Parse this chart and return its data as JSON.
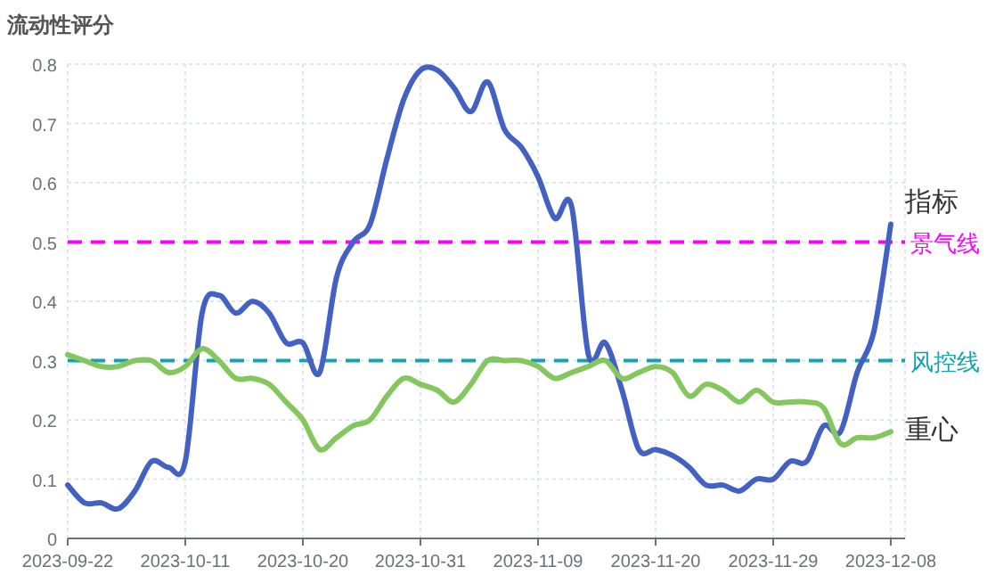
{
  "chart_data": {
    "type": "line",
    "ylabel": "流动性评分",
    "categories": [
      "2023-09-22",
      null,
      null,
      null,
      null,
      null,
      null,
      "2023-10-11",
      null,
      null,
      null,
      null,
      null,
      null,
      "2023-10-20",
      null,
      null,
      null,
      null,
      null,
      null,
      "2023-10-31",
      null,
      null,
      null,
      null,
      null,
      null,
      "2023-11-09",
      null,
      null,
      null,
      null,
      null,
      null,
      "2023-11-20",
      null,
      null,
      null,
      null,
      null,
      null,
      "2023-11-29",
      null,
      null,
      null,
      null,
      null,
      null,
      "2023-12-08"
    ],
    "series": [
      {
        "name": "指标",
        "color": "#4361c2",
        "values": [
          0.09,
          0.06,
          0.06,
          0.05,
          0.08,
          0.13,
          0.12,
          0.13,
          0.38,
          0.41,
          0.38,
          0.4,
          0.38,
          0.33,
          0.33,
          0.28,
          0.44,
          0.5,
          0.53,
          0.64,
          0.74,
          0.79,
          0.79,
          0.76,
          0.72,
          0.77,
          0.69,
          0.66,
          0.61,
          0.54,
          0.56,
          0.31,
          0.33,
          0.25,
          0.15,
          0.15,
          0.14,
          0.12,
          0.09,
          0.09,
          0.08,
          0.1,
          0.1,
          0.13,
          0.13,
          0.19,
          0.18,
          0.28,
          0.35,
          0.53
        ]
      },
      {
        "name": "重心",
        "color": "#85c75f",
        "values": [
          0.31,
          0.3,
          0.29,
          0.29,
          0.3,
          0.3,
          0.28,
          0.29,
          0.32,
          0.3,
          0.27,
          0.27,
          0.26,
          0.23,
          0.2,
          0.15,
          0.17,
          0.19,
          0.2,
          0.24,
          0.27,
          0.26,
          0.25,
          0.23,
          0.26,
          0.3,
          0.3,
          0.3,
          0.29,
          0.27,
          0.28,
          0.29,
          0.3,
          0.27,
          0.28,
          0.29,
          0.28,
          0.24,
          0.26,
          0.25,
          0.23,
          0.25,
          0.23,
          0.23,
          0.23,
          0.22,
          0.16,
          0.17,
          0.17,
          0.18
        ]
      }
    ],
    "ylim": [
      0,
      0.8
    ],
    "yticks": [
      0,
      0.1,
      0.2,
      0.3,
      0.4,
      0.5,
      0.6,
      0.7,
      0.8
    ],
    "grid": true,
    "ref_lines": [
      {
        "axis": "y",
        "value": 0.5,
        "label": "景气线",
        "color": "#ff00ff",
        "line_style": "dashed"
      },
      {
        "axis": "y",
        "value": 0.3,
        "label": "风控线",
        "color": "#13a3ad",
        "line_style": "dashed"
      }
    ]
  }
}
